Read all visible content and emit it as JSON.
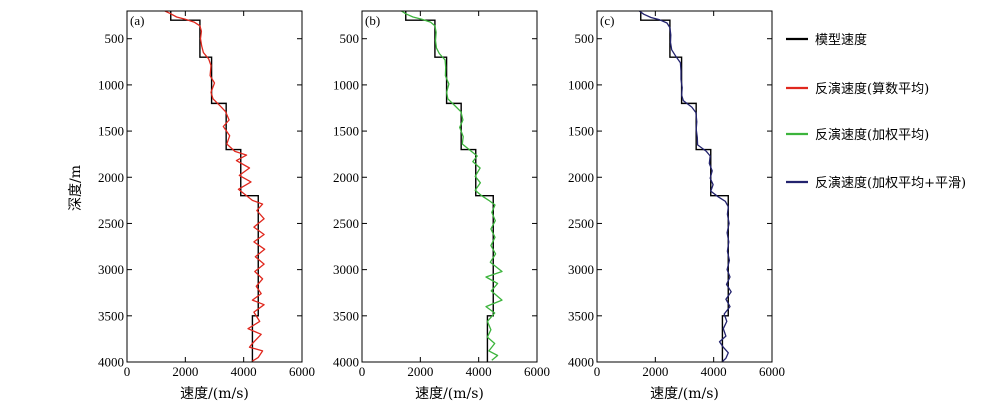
{
  "chart_data": {
    "type": "line",
    "x_axis": {
      "label": "速度/(m/s)",
      "range": [
        0,
        6000
      ],
      "ticks": [
        0,
        2000,
        4000,
        6000
      ]
    },
    "y_axis": {
      "label": "深度/m",
      "range": [
        200,
        4000
      ],
      "inverted": true,
      "ticks": [
        500,
        1000,
        1500,
        2000,
        2500,
        3000,
        3500,
        4000
      ]
    },
    "legend": {
      "placement": "right",
      "entries": [
        {
          "label": "模型速度",
          "color": "#000000"
        },
        {
          "label": "反演速度(算数平均)",
          "color": "#e0281e"
        },
        {
          "label": "反演速度(加权平均)",
          "color": "#3cb43c"
        },
        {
          "label": "反演速度(加权平均+平滑)",
          "color": "#23236e"
        }
      ]
    },
    "model": {
      "name": "模型速度",
      "color": "#000000",
      "steps": [
        {
          "from": 200,
          "to": 300,
          "v": 1500
        },
        {
          "from": 300,
          "to": 700,
          "v": 2500
        },
        {
          "from": 700,
          "to": 1200,
          "v": 2900
        },
        {
          "from": 1200,
          "to": 1700,
          "v": 3400
        },
        {
          "from": 1700,
          "to": 2200,
          "v": 3900
        },
        {
          "from": 2200,
          "to": 3500,
          "v": 4500
        },
        {
          "from": 3500,
          "to": 4000,
          "v": 4300
        }
      ]
    },
    "panels": [
      {
        "label": "(a)",
        "series_name": "反演速度(算数平均)",
        "color": "#e0281e",
        "points": [
          [
            1300,
            200
          ],
          [
            1500,
            230
          ],
          [
            1700,
            265
          ],
          [
            2000,
            290
          ],
          [
            2300,
            320
          ],
          [
            2500,
            360
          ],
          [
            2550,
            420
          ],
          [
            2520,
            500
          ],
          [
            2560,
            580
          ],
          [
            2620,
            650
          ],
          [
            2800,
            720
          ],
          [
            2880,
            790
          ],
          [
            2850,
            900
          ],
          [
            3000,
            980
          ],
          [
            2880,
            1080
          ],
          [
            2950,
            1150
          ],
          [
            3200,
            1230
          ],
          [
            3380,
            1290
          ],
          [
            3500,
            1380
          ],
          [
            3300,
            1450
          ],
          [
            3520,
            1550
          ],
          [
            3420,
            1640
          ],
          [
            3700,
            1720
          ],
          [
            4100,
            1760
          ],
          [
            3750,
            1820
          ],
          [
            4200,
            1900
          ],
          [
            3850,
            1980
          ],
          [
            4250,
            2050
          ],
          [
            3820,
            2130
          ],
          [
            4100,
            2200
          ],
          [
            4300,
            2250
          ],
          [
            4650,
            2290
          ],
          [
            4450,
            2360
          ],
          [
            4700,
            2450
          ],
          [
            4350,
            2540
          ],
          [
            4700,
            2620
          ],
          [
            4350,
            2700
          ],
          [
            4720,
            2780
          ],
          [
            4400,
            2860
          ],
          [
            4700,
            2940
          ],
          [
            4380,
            3020
          ],
          [
            4650,
            3100
          ],
          [
            4430,
            3180
          ],
          [
            4600,
            3260
          ],
          [
            4300,
            3330
          ],
          [
            4700,
            3380
          ],
          [
            4350,
            3460
          ],
          [
            4550,
            3560
          ],
          [
            4150,
            3640
          ],
          [
            4600,
            3700
          ],
          [
            4300,
            3800
          ],
          [
            4200,
            3840
          ],
          [
            4650,
            3880
          ],
          [
            4500,
            3950
          ],
          [
            4300,
            3990
          ]
        ]
      },
      {
        "label": "(b)",
        "series_name": "反演速度(加权平均)",
        "color": "#3cb43c",
        "points": [
          [
            1350,
            200
          ],
          [
            1500,
            230
          ],
          [
            1750,
            265
          ],
          [
            2050,
            290
          ],
          [
            2350,
            320
          ],
          [
            2500,
            360
          ],
          [
            2540,
            430
          ],
          [
            2520,
            520
          ],
          [
            2550,
            600
          ],
          [
            2650,
            660
          ],
          [
            2850,
            730
          ],
          [
            2870,
            810
          ],
          [
            2860,
            900
          ],
          [
            2980,
            990
          ],
          [
            2900,
            1080
          ],
          [
            2940,
            1150
          ],
          [
            3200,
            1230
          ],
          [
            3390,
            1290
          ],
          [
            3460,
            1380
          ],
          [
            3350,
            1460
          ],
          [
            3470,
            1560
          ],
          [
            3440,
            1640
          ],
          [
            3750,
            1720
          ],
          [
            3950,
            1770
          ],
          [
            3800,
            1830
          ],
          [
            4050,
            1900
          ],
          [
            3880,
            1990
          ],
          [
            4060,
            2060
          ],
          [
            3880,
            2140
          ],
          [
            4100,
            2200
          ],
          [
            4350,
            2250
          ],
          [
            4560,
            2300
          ],
          [
            4450,
            2380
          ],
          [
            4570,
            2470
          ],
          [
            4420,
            2560
          ],
          [
            4560,
            2650
          ],
          [
            4420,
            2740
          ],
          [
            4580,
            2830
          ],
          [
            4400,
            2920
          ],
          [
            4800,
            3020
          ],
          [
            4250,
            3080
          ],
          [
            4650,
            3150
          ],
          [
            4430,
            3230
          ],
          [
            4800,
            3330
          ],
          [
            4250,
            3400
          ],
          [
            4550,
            3470
          ],
          [
            4300,
            3560
          ],
          [
            4420,
            3650
          ],
          [
            4300,
            3730
          ],
          [
            4550,
            3800
          ],
          [
            4350,
            3880
          ],
          [
            4650,
            3930
          ],
          [
            4450,
            3980
          ]
        ]
      },
      {
        "label": "(c)",
        "series_name": "反演速度(加权平均+平滑)",
        "color": "#23236e",
        "points": [
          [
            1450,
            200
          ],
          [
            1600,
            235
          ],
          [
            1850,
            270
          ],
          [
            2150,
            295
          ],
          [
            2400,
            330
          ],
          [
            2500,
            380
          ],
          [
            2530,
            460
          ],
          [
            2520,
            540
          ],
          [
            2560,
            620
          ],
          [
            2700,
            690
          ],
          [
            2860,
            760
          ],
          [
            2880,
            850
          ],
          [
            2880,
            940
          ],
          [
            2920,
            1030
          ],
          [
            2900,
            1110
          ],
          [
            2960,
            1170
          ],
          [
            3250,
            1240
          ],
          [
            3390,
            1300
          ],
          [
            3420,
            1400
          ],
          [
            3400,
            1480
          ],
          [
            3440,
            1570
          ],
          [
            3450,
            1650
          ],
          [
            3750,
            1720
          ],
          [
            3880,
            1770
          ],
          [
            3850,
            1850
          ],
          [
            3950,
            1930
          ],
          [
            3880,
            2010
          ],
          [
            3980,
            2080
          ],
          [
            3900,
            2150
          ],
          [
            4150,
            2210
          ],
          [
            4400,
            2260
          ],
          [
            4500,
            2320
          ],
          [
            4470,
            2400
          ],
          [
            4530,
            2500
          ],
          [
            4460,
            2600
          ],
          [
            4520,
            2700
          ],
          [
            4470,
            2800
          ],
          [
            4540,
            2900
          ],
          [
            4460,
            3000
          ],
          [
            4560,
            3080
          ],
          [
            4440,
            3160
          ],
          [
            4600,
            3240
          ],
          [
            4420,
            3320
          ],
          [
            4560,
            3400
          ],
          [
            4360,
            3480
          ],
          [
            4450,
            3560
          ],
          [
            4330,
            3640
          ],
          [
            4420,
            3720
          ],
          [
            4200,
            3780
          ],
          [
            4330,
            3840
          ],
          [
            4500,
            3900
          ],
          [
            4420,
            3960
          ],
          [
            4300,
            3995
          ]
        ]
      }
    ]
  }
}
